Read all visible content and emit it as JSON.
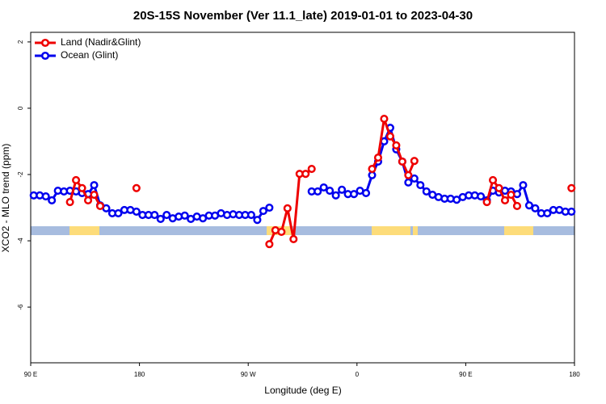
{
  "chart_data": {
    "type": "line",
    "title": "20S-15S November (Ver 11.1_late)   2019-01-01 to 2023-04-30",
    "xlabel": "Longitude (deg E)",
    "ylabel": "XCO2 - MLO trend (ppm)",
    "xlim": [
      90,
      540
    ],
    "ylim": [
      -7.68,
      2.29
    ],
    "xticks": [
      {
        "value": 90,
        "label": "90 E"
      },
      180,
      {
        "value": 270,
        "label": "90 W"
      },
      {
        "value": 360,
        "label": "0"
      },
      {
        "value": 450,
        "label": "90 E"
      },
      {
        "value": 540,
        "label": "180"
      }
    ],
    "yticks": [
      2,
      0,
      -2,
      -4,
      -6
    ],
    "legend": "top-left",
    "series": [
      {
        "name": "Land (Nadir&Glint)",
        "color": "#ee0000",
        "x": [
          122.5,
          127.5,
          132.5,
          137.5,
          142.5,
          147.5,
          152.5,
          177.5,
          182.5,
          287.5,
          292.5,
          297.5,
          302.5,
          307.5,
          312.5,
          317.5,
          322.5,
          327.5,
          372.5,
          377.5,
          382.5,
          387.5,
          392.5,
          397.5,
          402.5,
          407.5,
          412.5,
          467.5,
          472.5,
          477.5,
          482.5,
          487.5,
          492.5,
          497.5,
          537.5
        ],
        "values": [
          -2.83,
          -2.17,
          -2.41,
          -2.78,
          -2.61,
          -2.95,
          null,
          -2.41,
          null,
          -4.1,
          -3.68,
          -3.73,
          -3.02,
          -3.95,
          -1.98,
          -1.98,
          -1.83,
          null,
          -1.83,
          -1.49,
          -0.32,
          -0.85,
          -1.12,
          -1.61,
          -2.02,
          -1.59,
          null,
          -2.83,
          -2.17,
          -2.41,
          -2.78,
          -2.61,
          -2.95,
          null,
          -2.41
        ]
      },
      {
        "name": "Ocean (Glint)",
        "color": "#0000ee",
        "x": [
          92.5,
          97.5,
          102.5,
          107.5,
          112.5,
          117.5,
          122.5,
          127.5,
          132.5,
          137.5,
          142.5,
          147.5,
          152.5,
          157.5,
          162.5,
          167.5,
          172.5,
          177.5,
          182.5,
          187.5,
          192.5,
          197.5,
          202.5,
          207.5,
          212.5,
          217.5,
          222.5,
          227.5,
          232.5,
          237.5,
          242.5,
          247.5,
          252.5,
          257.5,
          262.5,
          267.5,
          272.5,
          277.5,
          282.5,
          287.5,
          292.5,
          322.5,
          327.5,
          332.5,
          337.5,
          342.5,
          347.5,
          352.5,
          357.5,
          362.5,
          367.5,
          372.5,
          377.5,
          382.5,
          387.5,
          392.5,
          397.5,
          402.5,
          407.5,
          412.5,
          417.5,
          422.5,
          427.5,
          432.5,
          437.5,
          442.5,
          447.5,
          452.5,
          457.5,
          462.5,
          467.5,
          472.5,
          477.5,
          482.5,
          487.5,
          492.5,
          497.5,
          502.5,
          507.5,
          512.5,
          517.5,
          522.5,
          527.5,
          532.5,
          537.5
        ],
        "values": [
          -2.63,
          -2.63,
          -2.66,
          -2.78,
          -2.49,
          -2.51,
          -2.49,
          -2.51,
          -2.56,
          -2.59,
          -2.32,
          -2.93,
          -3.02,
          -3.17,
          -3.17,
          -3.07,
          -3.07,
          -3.12,
          -3.22,
          -3.22,
          -3.22,
          -3.34,
          -3.22,
          -3.32,
          -3.27,
          -3.24,
          -3.34,
          -3.27,
          -3.32,
          -3.24,
          -3.24,
          -3.17,
          -3.22,
          -3.2,
          -3.22,
          -3.22,
          -3.22,
          -3.37,
          -3.1,
          -3.0,
          null,
          -2.51,
          -2.51,
          -2.39,
          -2.49,
          -2.63,
          -2.46,
          -2.59,
          -2.59,
          -2.49,
          -2.56,
          -2.02,
          -1.61,
          -1.0,
          -0.59,
          -1.24,
          -1.61,
          -2.24,
          -2.12,
          -2.32,
          -2.51,
          -2.61,
          -2.68,
          -2.73,
          -2.73,
          -2.76,
          -2.68,
          -2.63,
          -2.63,
          -2.66,
          -2.78,
          -2.49,
          -2.54,
          -2.49,
          -2.51,
          -2.59,
          -2.32,
          -2.93,
          -3.02,
          -3.17,
          -3.17,
          -3.07,
          -3.07,
          -3.12,
          -3.12
        ]
      }
    ]
  }
}
